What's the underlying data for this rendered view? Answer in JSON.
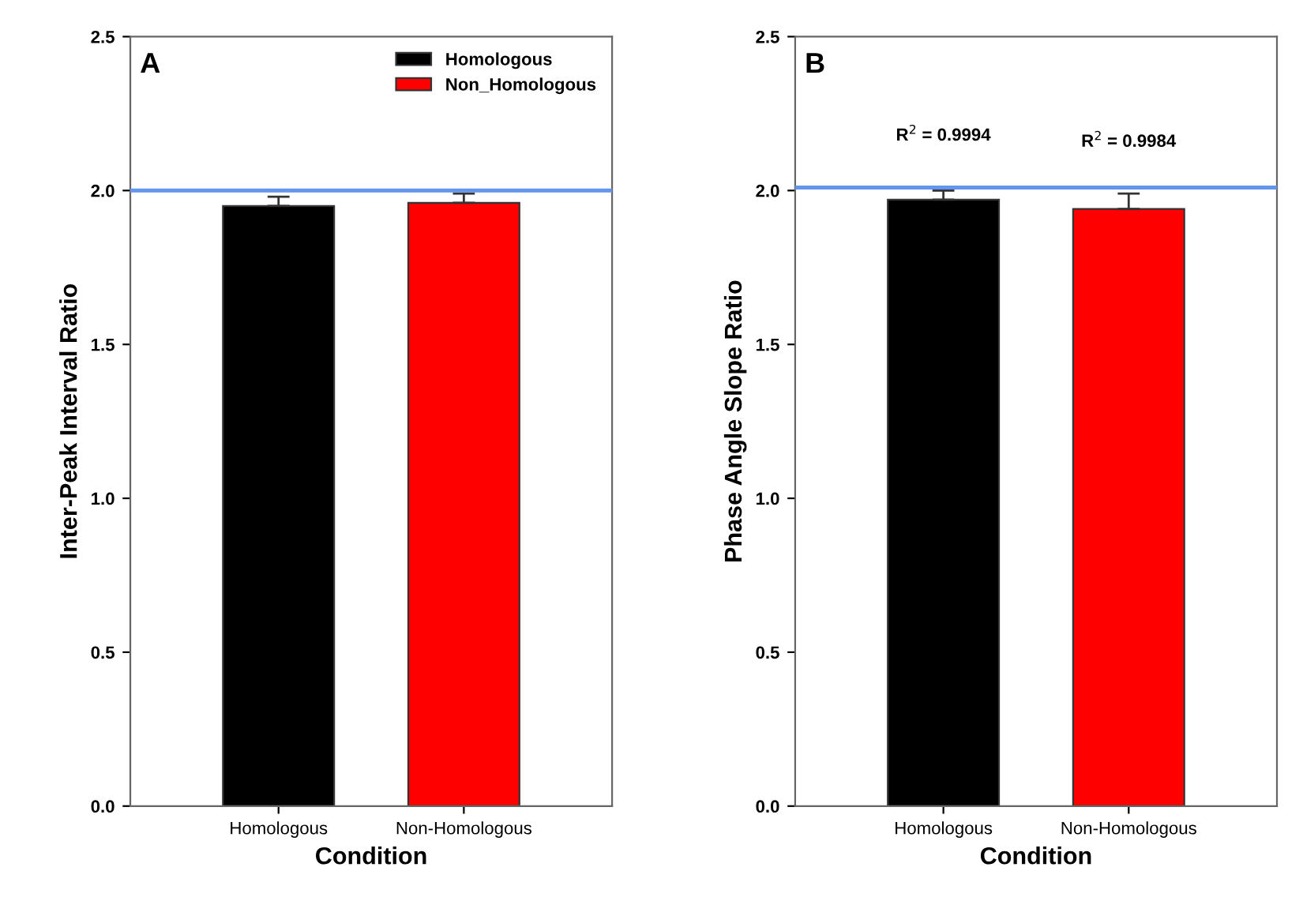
{
  "chart_data": [
    {
      "type": "bar",
      "xlabel": "Condition",
      "ylabel": "Inter-Peak Interval Ratio",
      "categories": [
        "Homologous",
        "Non-Homologous"
      ],
      "series": [
        {
          "name": "Homologous",
          "color": "#000000",
          "values": [
            1.95,
            null
          ],
          "errors": [
            0.03,
            null
          ]
        },
        {
          "name": "Non_Homologous",
          "color": "#ff0000",
          "values": [
            null,
            1.96
          ],
          "errors": [
            null,
            0.03
          ]
        }
      ],
      "ylim": [
        0,
        2.5
      ],
      "yticks": [
        {
          "value": 0,
          "label": "0.0"
        },
        0.5,
        {
          "value": 1,
          "label": "1.0"
        },
        1.5,
        {
          "value": 2,
          "label": "2.0"
        },
        2.5
      ],
      "ref_lines": [
        {
          "axis": "y",
          "value": 2.0,
          "color": "#6495ed"
        }
      ],
      "annotations": [
        "A"
      ],
      "legend": "top right",
      "grid": false
    },
    {
      "type": "bar",
      "xlabel": "Condition",
      "ylabel": "Phase Angle Slope Ratio",
      "categories": [
        "Homologous",
        "Non-Homologous"
      ],
      "series": [
        {
          "color": "#000000",
          "values": [
            1.97,
            null
          ],
          "errors": [
            0.03,
            null
          ]
        },
        {
          "color": "#ff0000",
          "values": [
            null,
            1.94
          ],
          "errors": [
            null,
            0.05
          ]
        }
      ],
      "ylim": [
        0,
        2.5
      ],
      "yticks": [
        {
          "value": 0,
          "label": "0.0"
        },
        0.5,
        {
          "value": 1,
          "label": "1.0"
        },
        1.5,
        {
          "value": 2,
          "label": "2.0"
        },
        2.5
      ],
      "ref_lines": [
        {
          "axis": "y",
          "value": 2.01,
          "color": "#6495ed"
        }
      ],
      "annotations": [
        "B",
        "R$^{2}$ = 0.9994",
        "R$^{2}$ = 0.9984"
      ],
      "grid": false
    }
  ]
}
